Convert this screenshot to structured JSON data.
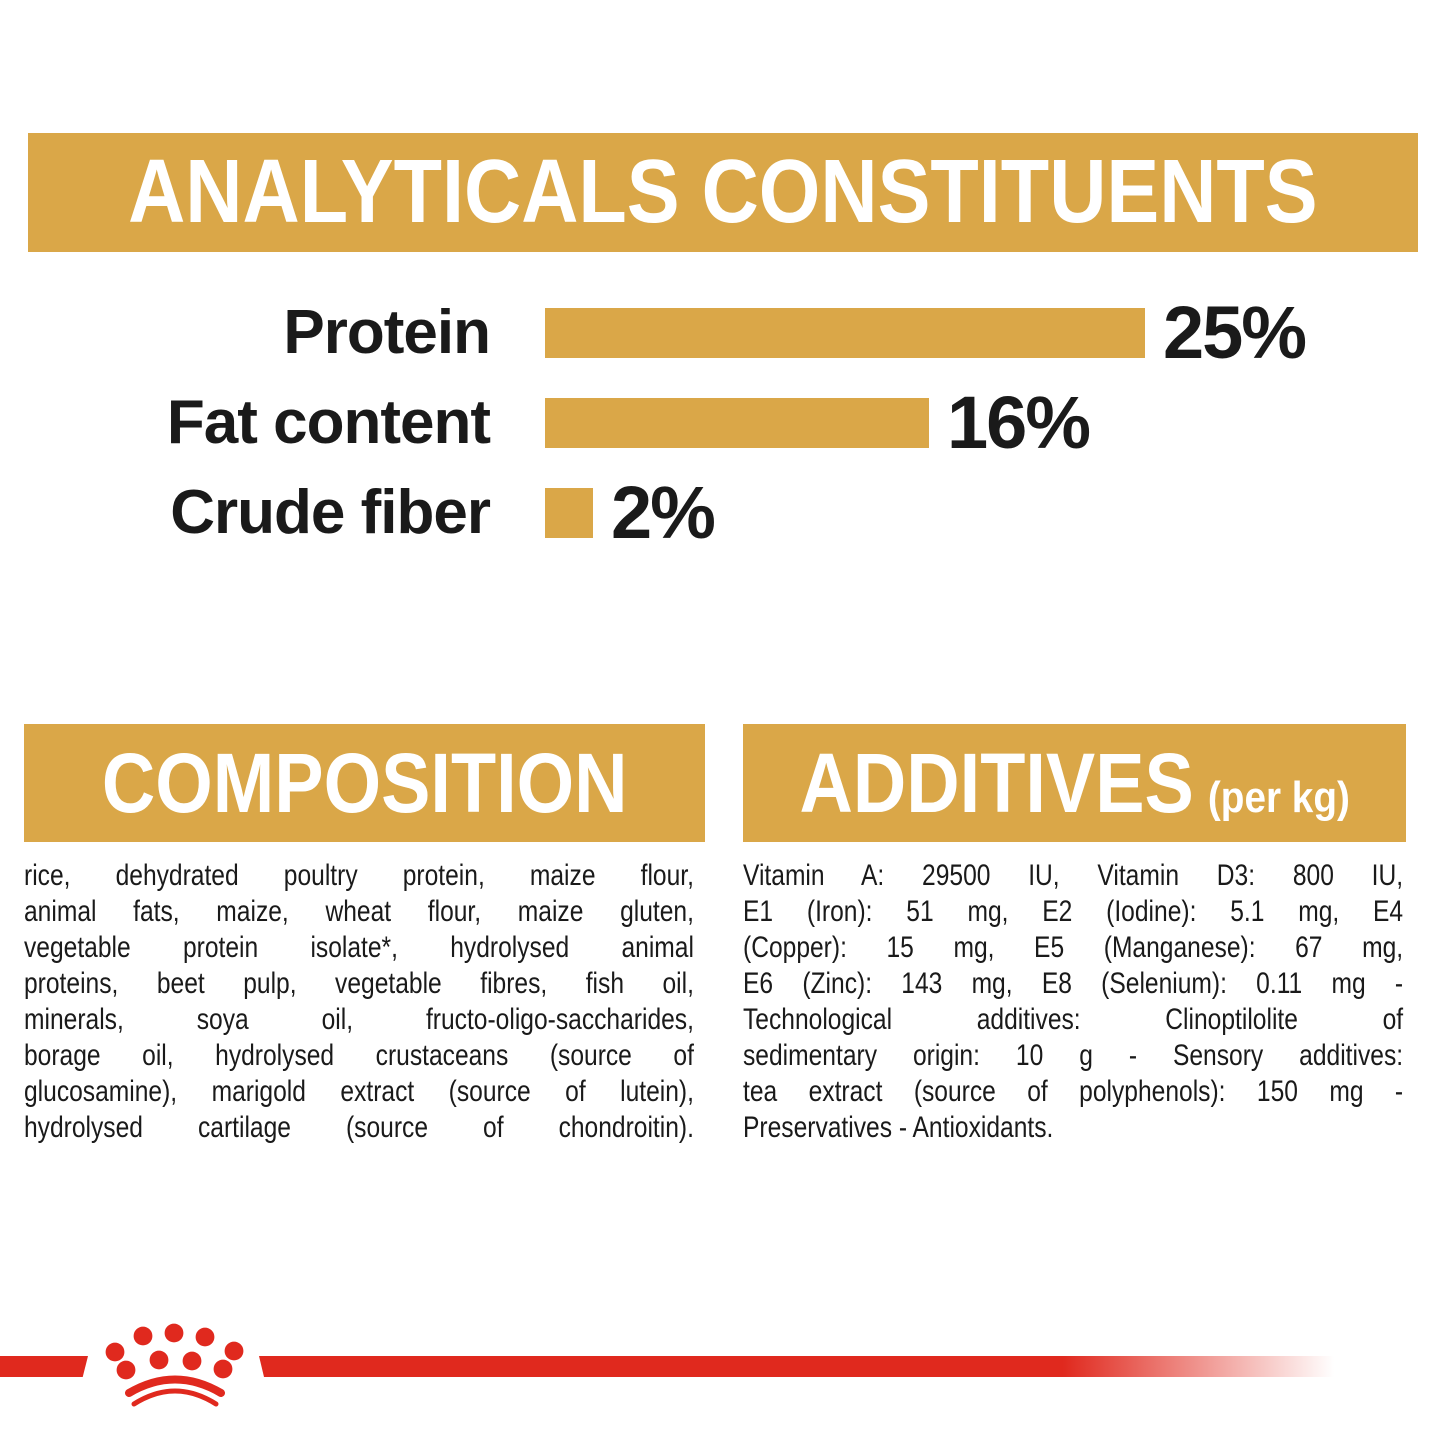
{
  "colors": {
    "gold": "#DAA748",
    "red": "#E0291E",
    "ink": "#1A1A1A",
    "paper": "#FFFFFF"
  },
  "header": {
    "title": "ANALYTICALS CONSTITUENTS"
  },
  "chart_data": {
    "type": "bar",
    "orientation": "horizontal",
    "title": "ANALYTICALS CONSTITUENTS",
    "categories": [
      "Protein",
      "Fat content",
      "Crude fiber"
    ],
    "values": [
      25,
      16,
      2
    ],
    "value_labels": [
      "25%",
      "16%",
      "2%"
    ],
    "xlim": [
      0,
      25
    ],
    "bar_color": "#DAA748",
    "grid": false,
    "legend": false
  },
  "composition": {
    "title": "COMPOSITION",
    "lines": [
      "rice, dehydrated poultry protein, maize flour,",
      "animal fats, maize, wheat flour, maize gluten,",
      "vegetable protein isolate*, hydrolysed animal",
      "proteins, beet pulp, vegetable fibres, fish oil,",
      "minerals, soya oil, fructo-oligo-saccharides,",
      "borage oil, hydrolysed crustaceans (source of",
      "glucosamine), marigold extract (source of lutein),",
      "hydrolysed cartilage (source of chondroitin)."
    ]
  },
  "additives": {
    "title": "ADDITIVES",
    "unit_suffix": "(per kg)",
    "lines": [
      "Vitamin A: 29500 IU, Vitamin D3: 800 IU,",
      "E1 (Iron): 51 mg, E2 (Iodine): 5.1 mg, E4",
      "(Copper): 15 mg, E5 (Manganese): 67 mg,",
      "E6 (Zinc): 143 mg, E8 (Selenium): 0.11 mg -",
      "Technological additives: Clinoptilolite of",
      "sedimentary origin: 10 g - Sensory additives:",
      "tea extract (source of polyphenols): 150 mg -",
      "Preservatives - Antioxidants."
    ]
  },
  "footer": {
    "logo_icon": "royal-canin-crown-icon"
  }
}
